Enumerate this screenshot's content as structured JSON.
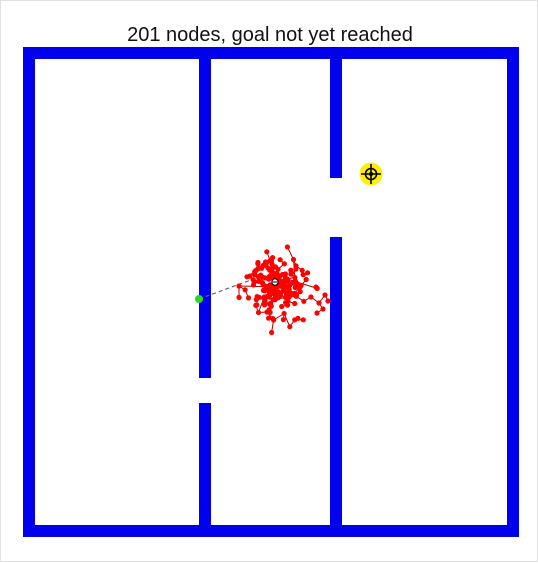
{
  "title": "201 nodes, goal not yet reached",
  "colors": {
    "wall": "#0000ee",
    "tree_node": "#ff0000",
    "tree_edge": "#b00000",
    "start": "#22dd22",
    "goal_fill": "#ffee00",
    "goal_mark": "#000000",
    "connector": "#666666",
    "background": "#ffffff"
  },
  "icons": {
    "start": "start-dot",
    "goal": "crosshair-target-icon",
    "cursor": "node-cursor-icon"
  }
}
